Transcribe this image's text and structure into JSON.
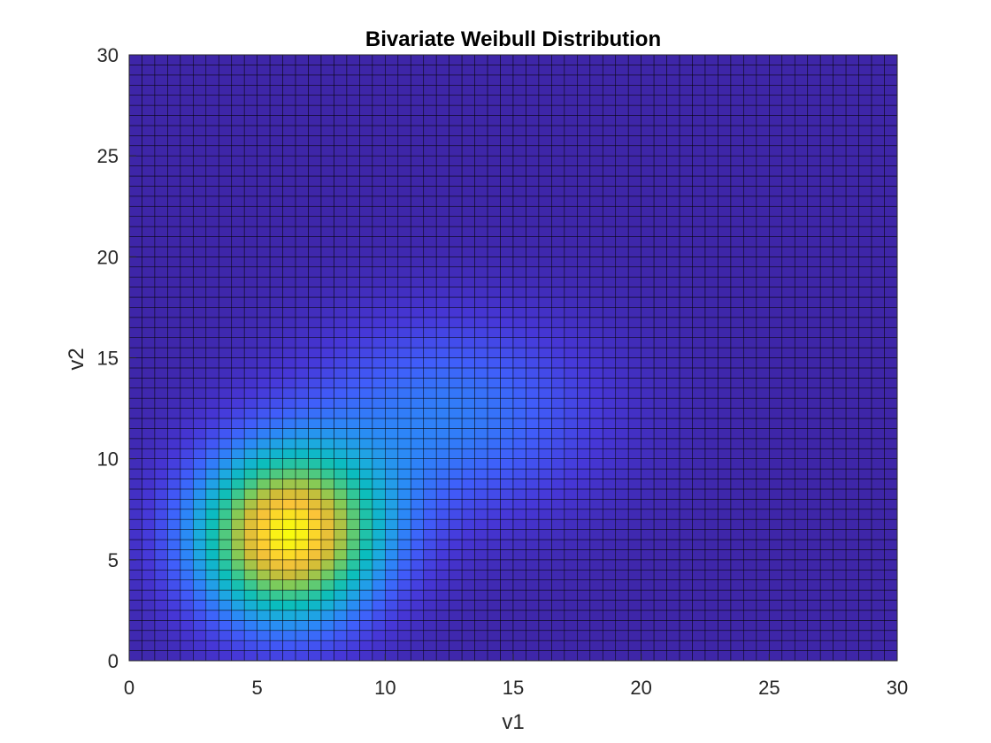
{
  "chart_data": {
    "type": "heatmap",
    "title": "Bivariate Weibull Distribution",
    "xlabel": "v1",
    "ylabel": "v2",
    "xlim": [
      0,
      30
    ],
    "ylim": [
      0,
      30
    ],
    "xticks": [
      0,
      5,
      10,
      15,
      20,
      25,
      30
    ],
    "yticks": [
      0,
      5,
      10,
      15,
      20,
      25,
      30
    ],
    "grid_step": 0.5,
    "colormap": "parula",
    "edge_color": "#000000",
    "surface_peaks": [
      {
        "center": [
          6.2,
          6.2
        ],
        "spread": [
          2.6,
          3.0
        ],
        "amplitude": 1.0
      },
      {
        "center": [
          12.5,
          12.0
        ],
        "spread": [
          4.2,
          3.6
        ],
        "amplitude": 0.28
      }
    ],
    "value_range": [
      0,
      1
    ],
    "grid": false,
    "legend": "none"
  }
}
